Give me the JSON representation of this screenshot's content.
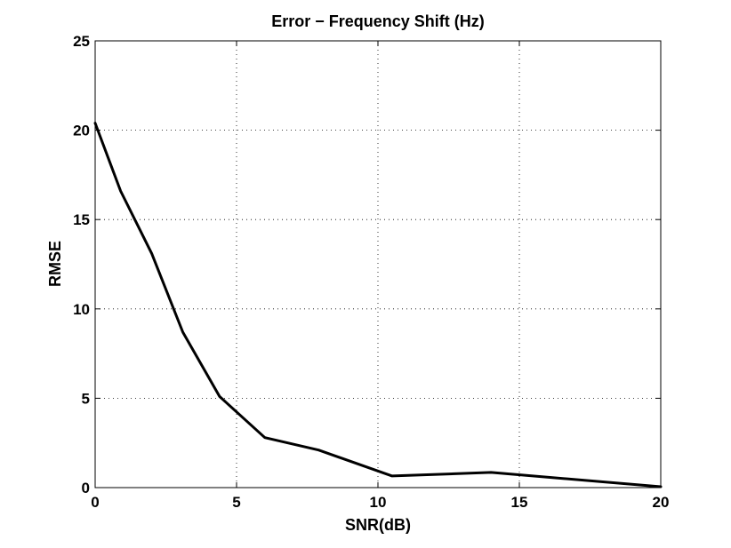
{
  "chart_data": {
    "type": "line",
    "title": "Error − Frequency Shift (Hz)",
    "xlabel": "SNR(dB)",
    "ylabel": "RMSE",
    "xlim": [
      0,
      20
    ],
    "ylim": [
      0,
      25
    ],
    "grid": true,
    "x_ticks": [
      0,
      5,
      10,
      15,
      20
    ],
    "y_ticks": [
      0,
      5,
      10,
      15,
      20,
      25
    ],
    "x_tick_labels": [
      "0",
      "5",
      "10",
      "15",
      "20"
    ],
    "y_tick_labels": [
      "0",
      "5",
      "10",
      "15",
      "20",
      "25"
    ],
    "series": [
      {
        "color": "#000000",
        "x": [
          0,
          0.9,
          2.0,
          3.1,
          4.4,
          6.0,
          7.9,
          10.5,
          14.0,
          20.0
        ],
        "y": [
          20.4,
          16.6,
          13.1,
          8.7,
          5.1,
          2.8,
          2.1,
          0.65,
          0.85,
          0.05
        ]
      }
    ]
  }
}
